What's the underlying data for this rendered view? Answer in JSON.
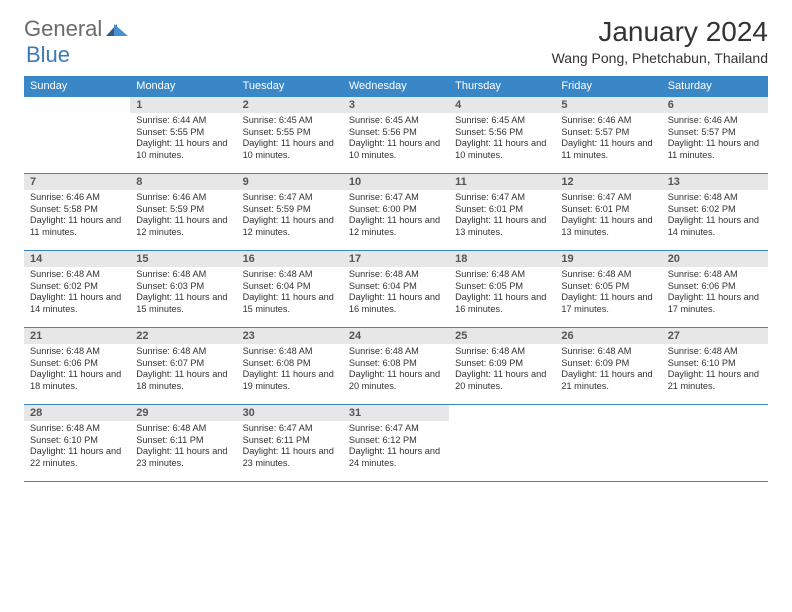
{
  "logo": {
    "text1": "General",
    "text2": "Blue"
  },
  "title": "January 2024",
  "subtitle": "Wang Pong, Phetchabun, Thailand",
  "header_bg": "#3a87c7",
  "daynum_bg": "#e7e7e7",
  "border_color": "#3a87c7",
  "dow": [
    "Sunday",
    "Monday",
    "Tuesday",
    "Wednesday",
    "Thursday",
    "Friday",
    "Saturday"
  ],
  "weeks": [
    [
      {
        "n": "",
        "sr": "",
        "ss": "",
        "dl": ""
      },
      {
        "n": "1",
        "sr": "Sunrise: 6:44 AM",
        "ss": "Sunset: 5:55 PM",
        "dl": "Daylight: 11 hours and 10 minutes."
      },
      {
        "n": "2",
        "sr": "Sunrise: 6:45 AM",
        "ss": "Sunset: 5:55 PM",
        "dl": "Daylight: 11 hours and 10 minutes."
      },
      {
        "n": "3",
        "sr": "Sunrise: 6:45 AM",
        "ss": "Sunset: 5:56 PM",
        "dl": "Daylight: 11 hours and 10 minutes."
      },
      {
        "n": "4",
        "sr": "Sunrise: 6:45 AM",
        "ss": "Sunset: 5:56 PM",
        "dl": "Daylight: 11 hours and 10 minutes."
      },
      {
        "n": "5",
        "sr": "Sunrise: 6:46 AM",
        "ss": "Sunset: 5:57 PM",
        "dl": "Daylight: 11 hours and 11 minutes."
      },
      {
        "n": "6",
        "sr": "Sunrise: 6:46 AM",
        "ss": "Sunset: 5:57 PM",
        "dl": "Daylight: 11 hours and 11 minutes."
      }
    ],
    [
      {
        "n": "7",
        "sr": "Sunrise: 6:46 AM",
        "ss": "Sunset: 5:58 PM",
        "dl": "Daylight: 11 hours and 11 minutes."
      },
      {
        "n": "8",
        "sr": "Sunrise: 6:46 AM",
        "ss": "Sunset: 5:59 PM",
        "dl": "Daylight: 11 hours and 12 minutes."
      },
      {
        "n": "9",
        "sr": "Sunrise: 6:47 AM",
        "ss": "Sunset: 5:59 PM",
        "dl": "Daylight: 11 hours and 12 minutes."
      },
      {
        "n": "10",
        "sr": "Sunrise: 6:47 AM",
        "ss": "Sunset: 6:00 PM",
        "dl": "Daylight: 11 hours and 12 minutes."
      },
      {
        "n": "11",
        "sr": "Sunrise: 6:47 AM",
        "ss": "Sunset: 6:01 PM",
        "dl": "Daylight: 11 hours and 13 minutes."
      },
      {
        "n": "12",
        "sr": "Sunrise: 6:47 AM",
        "ss": "Sunset: 6:01 PM",
        "dl": "Daylight: 11 hours and 13 minutes."
      },
      {
        "n": "13",
        "sr": "Sunrise: 6:48 AM",
        "ss": "Sunset: 6:02 PM",
        "dl": "Daylight: 11 hours and 14 minutes."
      }
    ],
    [
      {
        "n": "14",
        "sr": "Sunrise: 6:48 AM",
        "ss": "Sunset: 6:02 PM",
        "dl": "Daylight: 11 hours and 14 minutes."
      },
      {
        "n": "15",
        "sr": "Sunrise: 6:48 AM",
        "ss": "Sunset: 6:03 PM",
        "dl": "Daylight: 11 hours and 15 minutes."
      },
      {
        "n": "16",
        "sr": "Sunrise: 6:48 AM",
        "ss": "Sunset: 6:04 PM",
        "dl": "Daylight: 11 hours and 15 minutes."
      },
      {
        "n": "17",
        "sr": "Sunrise: 6:48 AM",
        "ss": "Sunset: 6:04 PM",
        "dl": "Daylight: 11 hours and 16 minutes."
      },
      {
        "n": "18",
        "sr": "Sunrise: 6:48 AM",
        "ss": "Sunset: 6:05 PM",
        "dl": "Daylight: 11 hours and 16 minutes."
      },
      {
        "n": "19",
        "sr": "Sunrise: 6:48 AM",
        "ss": "Sunset: 6:05 PM",
        "dl": "Daylight: 11 hours and 17 minutes."
      },
      {
        "n": "20",
        "sr": "Sunrise: 6:48 AM",
        "ss": "Sunset: 6:06 PM",
        "dl": "Daylight: 11 hours and 17 minutes."
      }
    ],
    [
      {
        "n": "21",
        "sr": "Sunrise: 6:48 AM",
        "ss": "Sunset: 6:06 PM",
        "dl": "Daylight: 11 hours and 18 minutes."
      },
      {
        "n": "22",
        "sr": "Sunrise: 6:48 AM",
        "ss": "Sunset: 6:07 PM",
        "dl": "Daylight: 11 hours and 18 minutes."
      },
      {
        "n": "23",
        "sr": "Sunrise: 6:48 AM",
        "ss": "Sunset: 6:08 PM",
        "dl": "Daylight: 11 hours and 19 minutes."
      },
      {
        "n": "24",
        "sr": "Sunrise: 6:48 AM",
        "ss": "Sunset: 6:08 PM",
        "dl": "Daylight: 11 hours and 20 minutes."
      },
      {
        "n": "25",
        "sr": "Sunrise: 6:48 AM",
        "ss": "Sunset: 6:09 PM",
        "dl": "Daylight: 11 hours and 20 minutes."
      },
      {
        "n": "26",
        "sr": "Sunrise: 6:48 AM",
        "ss": "Sunset: 6:09 PM",
        "dl": "Daylight: 11 hours and 21 minutes."
      },
      {
        "n": "27",
        "sr": "Sunrise: 6:48 AM",
        "ss": "Sunset: 6:10 PM",
        "dl": "Daylight: 11 hours and 21 minutes."
      }
    ],
    [
      {
        "n": "28",
        "sr": "Sunrise: 6:48 AM",
        "ss": "Sunset: 6:10 PM",
        "dl": "Daylight: 11 hours and 22 minutes."
      },
      {
        "n": "29",
        "sr": "Sunrise: 6:48 AM",
        "ss": "Sunset: 6:11 PM",
        "dl": "Daylight: 11 hours and 23 minutes."
      },
      {
        "n": "30",
        "sr": "Sunrise: 6:47 AM",
        "ss": "Sunset: 6:11 PM",
        "dl": "Daylight: 11 hours and 23 minutes."
      },
      {
        "n": "31",
        "sr": "Sunrise: 6:47 AM",
        "ss": "Sunset: 6:12 PM",
        "dl": "Daylight: 11 hours and 24 minutes."
      },
      {
        "n": "",
        "sr": "",
        "ss": "",
        "dl": ""
      },
      {
        "n": "",
        "sr": "",
        "ss": "",
        "dl": ""
      },
      {
        "n": "",
        "sr": "",
        "ss": "",
        "dl": ""
      }
    ]
  ]
}
